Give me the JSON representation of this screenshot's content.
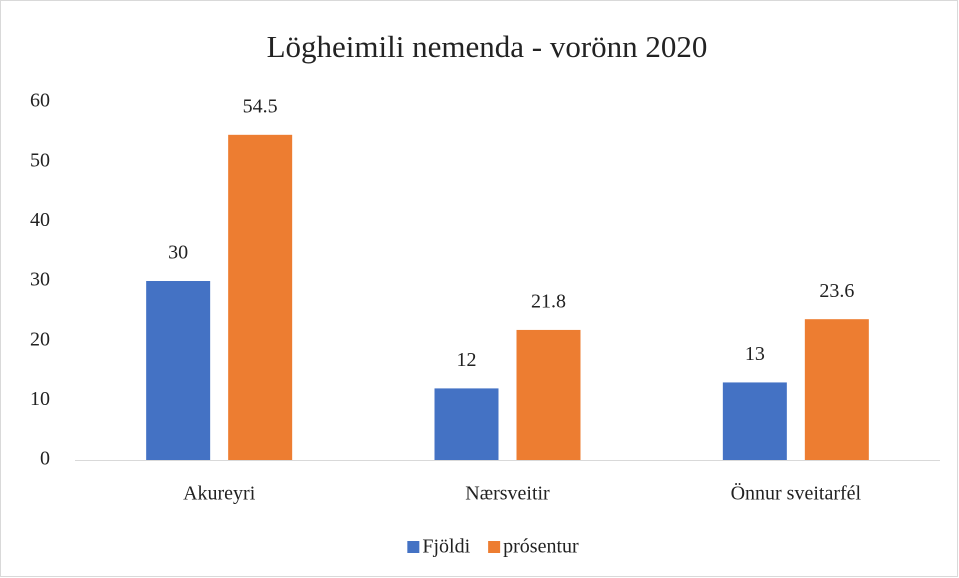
{
  "chart_data": {
    "type": "bar",
    "title": "Lögheimili nemenda - vorönn 2020",
    "categories": [
      "Akureyri",
      "Nærsveitir",
      "Önnur sveitarfél"
    ],
    "series": [
      {
        "name": "Fjöldi",
        "color": "#4472c4",
        "values": [
          30,
          12,
          13
        ]
      },
      {
        "name": "prósentur",
        "color": "#ed7d31",
        "values": [
          54.5,
          21.8,
          23.6
        ]
      }
    ],
    "ylim": [
      0,
      60
    ],
    "yticks": [
      0,
      10,
      20,
      30,
      40,
      50,
      60
    ],
    "grid": false,
    "legend": "bottom"
  }
}
